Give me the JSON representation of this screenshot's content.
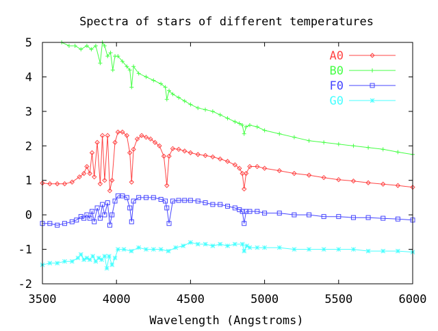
{
  "chart_data": {
    "type": "line",
    "title": "Spectra of stars of different temperatures",
    "xlabel": "Wavelength (Angstroms)",
    "ylabel": "",
    "xlim": [
      3500,
      6000
    ],
    "ylim": [
      -2,
      5
    ],
    "x_ticks": [
      "3500",
      "4000",
      "4500",
      "5000",
      "5500",
      "6000"
    ],
    "y_ticks": [
      "-2",
      "-1",
      "0",
      "1",
      "2",
      "3",
      "4",
      "5"
    ],
    "grid": false,
    "legend_position": "top-right",
    "series": [
      {
        "name": "A0",
        "color": "#ff4444",
        "marker": "diamond",
        "x": [
          3500,
          3550,
          3600,
          3650,
          3700,
          3750,
          3780,
          3800,
          3820,
          3835,
          3850,
          3870,
          3890,
          3905,
          3920,
          3940,
          3955,
          3970,
          3990,
          4010,
          4040,
          4070,
          4090,
          4102,
          4115,
          4140,
          4170,
          4200,
          4230,
          4260,
          4290,
          4320,
          4340,
          4355,
          4380,
          4420,
          4460,
          4500,
          4550,
          4600,
          4650,
          4700,
          4750,
          4800,
          4830,
          4850,
          4862,
          4875,
          4900,
          4950,
          5000,
          5100,
          5200,
          5300,
          5400,
          5500,
          5600,
          5700,
          5800,
          5900,
          6000
        ],
        "y": [
          0.92,
          0.9,
          0.9,
          0.9,
          0.95,
          1.1,
          1.2,
          1.4,
          1.2,
          1.8,
          1.1,
          2.1,
          0.9,
          2.3,
          1.0,
          2.3,
          0.7,
          1.0,
          2.1,
          2.4,
          2.4,
          2.3,
          1.8,
          0.95,
          1.9,
          2.2,
          2.3,
          2.25,
          2.2,
          2.1,
          2.0,
          1.7,
          0.85,
          1.7,
          1.92,
          1.9,
          1.85,
          1.8,
          1.75,
          1.72,
          1.68,
          1.62,
          1.55,
          1.45,
          1.35,
          1.2,
          0.75,
          1.2,
          1.4,
          1.4,
          1.35,
          1.28,
          1.2,
          1.15,
          1.08,
          1.02,
          0.98,
          0.93,
          0.89,
          0.85,
          0.8
        ]
      },
      {
        "name": "B0",
        "color": "#44ff44",
        "marker": "plus",
        "x": [
          3630,
          3680,
          3720,
          3760,
          3800,
          3830,
          3860,
          3890,
          3905,
          3920,
          3940,
          3960,
          3975,
          3990,
          4010,
          4040,
          4070,
          4090,
          4102,
          4115,
          4150,
          4200,
          4250,
          4300,
          4330,
          4340,
          4355,
          4380,
          4420,
          4460,
          4500,
          4550,
          4600,
          4650,
          4700,
          4750,
          4800,
          4830,
          4850,
          4862,
          4875,
          4900,
          4950,
          5000,
          5100,
          5200,
          5300,
          5400,
          5500,
          5600,
          5700,
          5800,
          5900,
          6000
        ],
        "y": [
          5.0,
          4.9,
          4.9,
          4.8,
          4.9,
          4.8,
          4.9,
          4.4,
          5.0,
          4.9,
          4.6,
          4.7,
          4.2,
          4.6,
          4.6,
          4.45,
          4.3,
          4.2,
          3.7,
          4.3,
          4.1,
          4.0,
          3.9,
          3.8,
          3.7,
          3.35,
          3.6,
          3.5,
          3.4,
          3.3,
          3.2,
          3.1,
          3.05,
          3.0,
          2.9,
          2.8,
          2.7,
          2.65,
          2.6,
          2.35,
          2.55,
          2.6,
          2.55,
          2.45,
          2.35,
          2.25,
          2.15,
          2.1,
          2.05,
          2.0,
          1.95,
          1.9,
          1.82,
          1.75
        ]
      },
      {
        "name": "F0",
        "color": "#4444ff",
        "marker": "square",
        "x": [
          3500,
          3550,
          3600,
          3650,
          3700,
          3730,
          3760,
          3780,
          3800,
          3820,
          3835,
          3850,
          3870,
          3890,
          3905,
          3920,
          3940,
          3955,
          3970,
          3990,
          4010,
          4040,
          4070,
          4090,
          4102,
          4115,
          4150,
          4200,
          4250,
          4300,
          4330,
          4340,
          4355,
          4380,
          4420,
          4460,
          4500,
          4550,
          4600,
          4650,
          4700,
          4750,
          4800,
          4830,
          4850,
          4862,
          4875,
          4900,
          4950,
          5000,
          5100,
          5200,
          5300,
          5400,
          5500,
          5600,
          5700,
          5800,
          5900,
          6000
        ],
        "y": [
          -0.25,
          -0.25,
          -0.3,
          -0.25,
          -0.2,
          -0.15,
          -0.05,
          -0.1,
          0.0,
          -0.1,
          0.1,
          -0.2,
          0.2,
          -0.1,
          0.3,
          0.0,
          0.35,
          -0.3,
          0.0,
          0.4,
          0.55,
          0.55,
          0.5,
          0.2,
          -0.2,
          0.4,
          0.5,
          0.5,
          0.5,
          0.45,
          0.4,
          0.2,
          -0.25,
          0.4,
          0.42,
          0.42,
          0.42,
          0.4,
          0.35,
          0.3,
          0.3,
          0.25,
          0.2,
          0.15,
          0.1,
          -0.25,
          0.1,
          0.1,
          0.1,
          0.05,
          0.05,
          0.0,
          0.0,
          -0.05,
          -0.05,
          -0.08,
          -0.08,
          -0.1,
          -0.12,
          -0.15
        ]
      },
      {
        "name": "G0",
        "color": "#44ffff",
        "marker": "star",
        "x": [
          3500,
          3550,
          3600,
          3650,
          3700,
          3740,
          3760,
          3780,
          3800,
          3820,
          3840,
          3860,
          3880,
          3900,
          3920,
          3935,
          3950,
          3970,
          3990,
          4010,
          4050,
          4100,
          4150,
          4200,
          4250,
          4300,
          4350,
          4400,
          4450,
          4500,
          4550,
          4600,
          4650,
          4700,
          4750,
          4800,
          4850,
          4862,
          4880,
          4900,
          4950,
          5000,
          5100,
          5200,
          5300,
          5400,
          5500,
          5600,
          5700,
          5800,
          5900,
          6000
        ],
        "y": [
          -1.45,
          -1.4,
          -1.4,
          -1.35,
          -1.35,
          -1.25,
          -1.15,
          -1.3,
          -1.25,
          -1.3,
          -1.2,
          -1.35,
          -1.25,
          -1.3,
          -1.2,
          -1.55,
          -1.2,
          -1.45,
          -1.25,
          -1.0,
          -1.0,
          -1.05,
          -0.95,
          -1.0,
          -1.0,
          -1.0,
          -1.05,
          -0.95,
          -0.9,
          -0.8,
          -0.85,
          -0.85,
          -0.9,
          -0.85,
          -0.9,
          -0.85,
          -0.85,
          -1.05,
          -0.9,
          -0.95,
          -0.95,
          -0.95,
          -0.95,
          -1.0,
          -1.0,
          -1.0,
          -1.0,
          -1.0,
          -1.05,
          -1.05,
          -1.05,
          -1.08
        ]
      }
    ]
  }
}
